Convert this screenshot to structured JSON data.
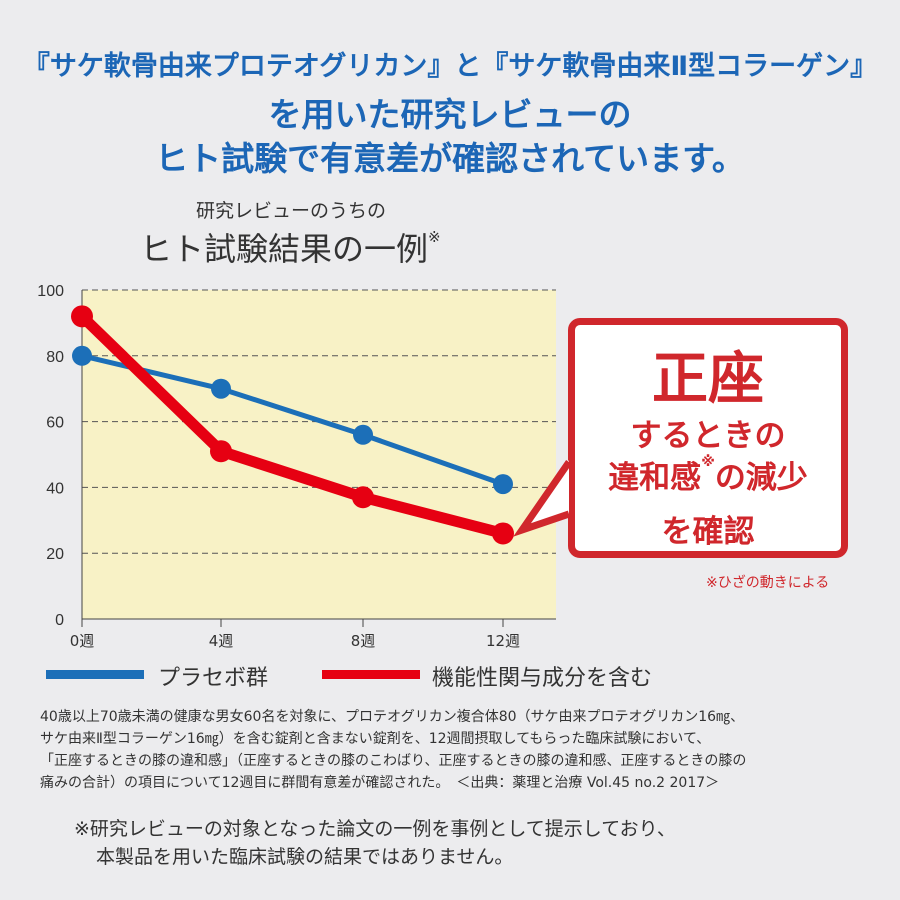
{
  "headline": {
    "line1": "『サケ軟骨由来プロテオグリカン』と『サケ軟骨由来Ⅱ型コラーゲン』",
    "line2": "を用いた研究レビューの",
    "line3": "ヒト試験で有意差が確認されています。"
  },
  "subtitle": {
    "line1": "研究レビューのうちの",
    "line2": "ヒト試験結果の一例",
    "mark": "※"
  },
  "callout": {
    "big": "正座",
    "line2": "するときの",
    "line3a": "違和感",
    "line3mark": "※",
    "line3b": "の減少",
    "line4": "を確認",
    "footnote": "※ひざの動きによる"
  },
  "chart_data": {
    "type": "line",
    "categories": [
      "0週",
      "4週",
      "8週",
      "12週"
    ],
    "ylim": [
      0,
      100
    ],
    "yticks": [
      0,
      20,
      40,
      60,
      80,
      100
    ],
    "grid": true,
    "series": [
      {
        "name": "プラセボ群",
        "color": "#1c6fb8",
        "values": [
          80,
          70,
          56,
          41
        ]
      },
      {
        "name": "機能性関与成分を含む",
        "color": "#e60012",
        "values": [
          92,
          51,
          37,
          26
        ]
      }
    ]
  },
  "note": {
    "line1": "40歳以上70歳未満の健康な男女60名を対象に、プロテオグリカン複合体80（サケ由来プロテオグリカン16㎎、",
    "line2": "サケ由来Ⅱ型コラーゲン16㎎）を含む錠剤と含まない錠剤を、12週間摂取してもらった臨床試験において、",
    "line3": "「正座するときの膝の違和感」（正座するときの膝のこわばり、正座するときの膝の違和感、正座するときの膝の",
    "line4": "痛みの合計）の項目について12週目に群間有意差が確認された。　＜出典：薬理と治療 Vol.45 no.2 2017＞"
  },
  "disclaimer": {
    "line1": "※研究レビューの対象となった論文の一例を事例として提示しており、",
    "line2": "本製品を用いた臨床試験の結果ではありません。"
  }
}
